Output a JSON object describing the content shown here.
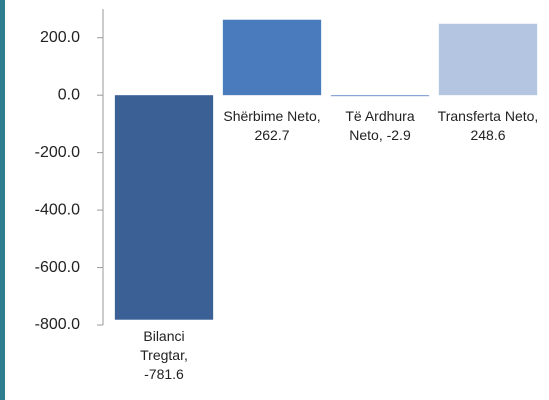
{
  "chart_data": {
    "type": "bar",
    "categories": [
      "Bilanci Tregtar",
      "Shërbime Neto",
      "Të Ardhura Neto",
      "Transferta Neto"
    ],
    "values": [
      -781.6,
      262.7,
      -2.9,
      248.6
    ],
    "colors": [
      "#3b6096",
      "#4a7cbd",
      "#6f93cc",
      "#b4c5e1"
    ],
    "ylim": [
      -800,
      300
    ],
    "yticks": [
      {
        "value": 200,
        "label": "200.0"
      },
      {
        "value": 0,
        "label": "0.0"
      },
      {
        "value": -200,
        "label": "-200.0"
      },
      {
        "value": -400,
        "label": "-400.0"
      },
      {
        "value": -600,
        "label": "-600.0"
      },
      {
        "value": -800,
        "label": "-800.0"
      }
    ],
    "grid": false
  }
}
